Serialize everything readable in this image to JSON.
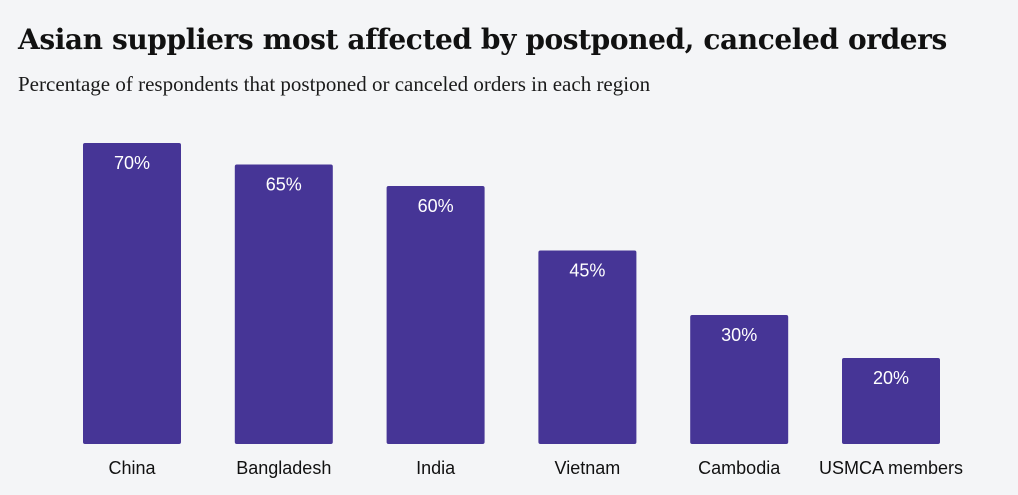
{
  "chart_data": {
    "type": "bar",
    "title": "Asian suppliers most affected by postponed, canceled orders",
    "subtitle": "Percentage of respondents that postponed or canceled orders in each region",
    "categories": [
      "China",
      "Bangladesh",
      "India",
      "Vietnam",
      "Cambodia",
      "USMCA members"
    ],
    "values": [
      70,
      65,
      60,
      45,
      30,
      20
    ],
    "value_labels": [
      "70%",
      "65%",
      "60%",
      "45%",
      "30%",
      "20%"
    ],
    "unit": "%",
    "ylim": [
      0,
      70
    ],
    "grid": false,
    "legend": "none",
    "bar_color": "#463596",
    "label_color": "#ffffff"
  }
}
